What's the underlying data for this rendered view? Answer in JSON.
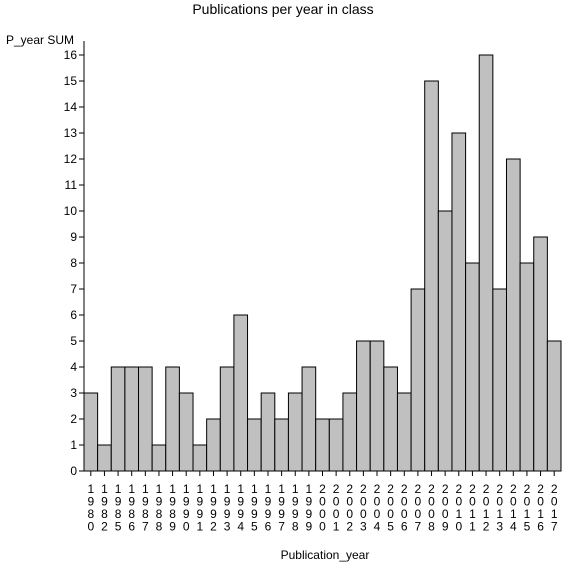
{
  "chart_data": {
    "type": "bar",
    "title": "Publications per year in class",
    "xlabel": "Publication_year",
    "ylabel": "P_year SUM",
    "ylim": [
      0,
      16
    ],
    "yticks": [
      0,
      1,
      2,
      3,
      4,
      5,
      6,
      7,
      8,
      9,
      10,
      11,
      12,
      13,
      14,
      15,
      16
    ],
    "categories": [
      "1980",
      "1982",
      "1985",
      "1986",
      "1987",
      "1988",
      "1989",
      "1990",
      "1991",
      "1992",
      "1993",
      "1994",
      "1995",
      "1996",
      "1997",
      "1998",
      "1999",
      "2000",
      "2001",
      "2002",
      "2003",
      "2004",
      "2005",
      "2006",
      "2007",
      "2008",
      "2009",
      "2010",
      "2011",
      "2012",
      "2013",
      "2014",
      "2015",
      "2016",
      "2017"
    ],
    "values": [
      3,
      1,
      4,
      4,
      4,
      1,
      4,
      3,
      1,
      2,
      4,
      6,
      2,
      3,
      2,
      3,
      4,
      2,
      2,
      3,
      5,
      5,
      4,
      3,
      7,
      15,
      10,
      13,
      8,
      16,
      7,
      12,
      8,
      9,
      5
    ],
    "bar_color": "#c0c0c0",
    "grid": false,
    "legend": "none"
  }
}
